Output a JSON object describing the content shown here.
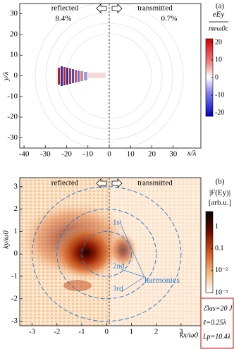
{
  "chart_data": [
    {
      "type": "heatmap",
      "panel_label": "(a)",
      "xlabel": "x/λ",
      "ylabel": "y/λ",
      "xlim": [
        -42,
        43
      ],
      "ylim": [
        -35,
        35
      ],
      "xticks": [
        -40,
        -30,
        -20,
        -10,
        0,
        10,
        20,
        30
      ],
      "yticks": [
        -30,
        -20,
        -10,
        0,
        10,
        20,
        30
      ],
      "left_label": "reflected",
      "left_value": "8.4%",
      "right_label": "transmitted",
      "right_value": "0.7%",
      "colorbar": {
        "label": [
          "eEy",
          "meω0c"
        ],
        "clim": [
          -22,
          22
        ],
        "ticks": [
          20,
          10,
          0,
          -10,
          -20
        ]
      }
    },
    {
      "type": "heatmap",
      "panel_label": "(b)",
      "xlabel": "kx/ω0",
      "ylabel": "ky/ω0",
      "xlim": [
        -3.5,
        3.8
      ],
      "ylim": [
        -3.2,
        3.4
      ],
      "xticks": [
        -3,
        -2,
        -1,
        0,
        1,
        2,
        3
      ],
      "yticks": [
        -3,
        -2,
        -1,
        0,
        1,
        2,
        3
      ],
      "left_label": "reflected",
      "right_label": "transmitted",
      "colorbar": {
        "label": [
          "|F(Ey)|",
          "[arb.u.]"
        ],
        "clim": [
          0.001,
          5
        ],
        "log": true,
        "ticks": [
          1,
          0.1,
          {
            "value": 0.01,
            "label": "10⁻²"
          },
          {
            "value": 0.001,
            "label": "10⁻³"
          }
        ]
      },
      "harmonics": [
        {
          "label": "1st",
          "k": 1
        },
        {
          "label": "2nd",
          "k": 2
        },
        {
          "label": "3rd",
          "k": 3
        }
      ],
      "harmonics_label": "harmonics",
      "harmonics_color": "#2a7fd4",
      "parameters": [
        "ℰlas=20 J",
        "ℓ=0.25λ",
        "Lp=10.4λ"
      ]
    }
  ]
}
